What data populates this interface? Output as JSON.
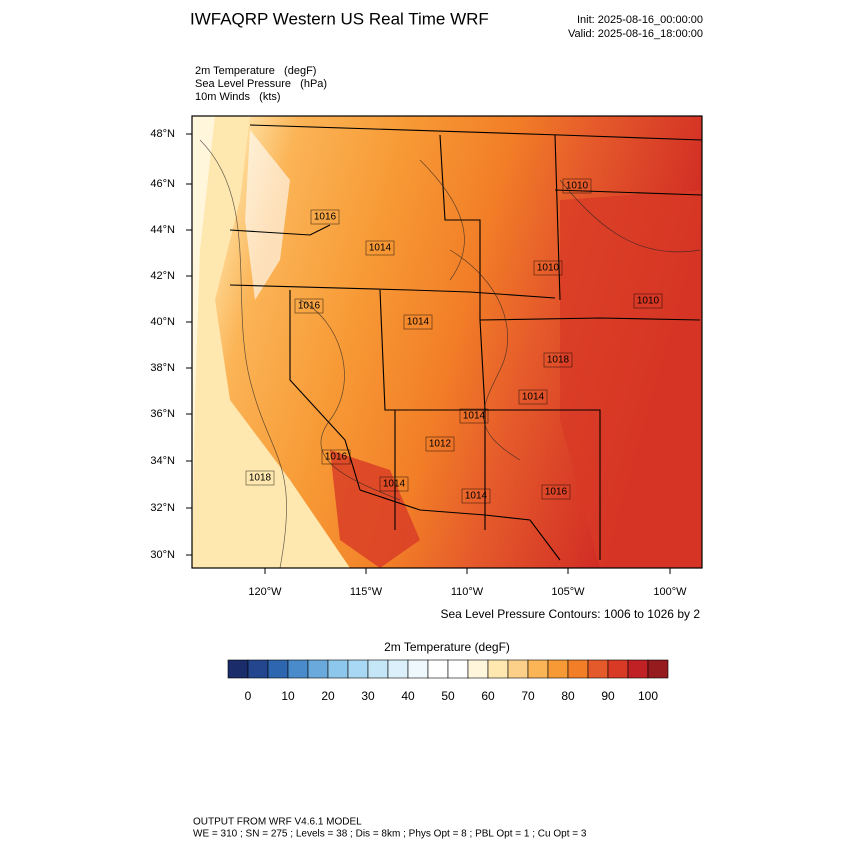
{
  "header": {
    "title": "IWFAQRP Western US Real Time WRF",
    "init": "Init: 2025-08-16_00:00:00",
    "valid": "Valid: 2025-08-16_18:00:00"
  },
  "fields": [
    "2m Temperature   (degF)",
    "Sea Level Pressure   (hPa)",
    "10m Winds   (kts)"
  ],
  "map": {
    "lat_labels": [
      "48°N",
      "46°N",
      "44°N",
      "42°N",
      "40°N",
      "38°N",
      "36°N",
      "34°N",
      "32°N",
      "30°N"
    ],
    "lon_labels": [
      "120°W",
      "115°W",
      "110°W",
      "105°W",
      "100°W"
    ],
    "pressure_labels": [
      "1010",
      "1016",
      "1014",
      "1010",
      "1010",
      "1016",
      "1014",
      "1018",
      "1014",
      "1014",
      "1012",
      "1016",
      "1018",
      "1014",
      "1014",
      "1016"
    ],
    "contour_note": "Sea Level Pressure Contours: 1006 to 1026 by 2"
  },
  "colorbar": {
    "title": "2m Temperature  (degF)",
    "colors": [
      "#1b2c6a",
      "#23468f",
      "#2f66b0",
      "#4a8ccb",
      "#6aa9db",
      "#8ec7ec",
      "#a8d8f3",
      "#c4e6f7",
      "#dbf0fa",
      "#eef8fd",
      "#ffffff",
      "#ffffff",
      "#fff6dc",
      "#ffe8b0",
      "#fdd08a",
      "#fbb456",
      "#f79a36",
      "#f27e27",
      "#e55a2b",
      "#d83a26",
      "#bf2125",
      "#961b1e"
    ],
    "ticks": [
      "0",
      "10",
      "20",
      "30",
      "40",
      "50",
      "60",
      "70",
      "80",
      "90",
      "100"
    ]
  },
  "footer": {
    "line1": "OUTPUT FROM WRF V4.6.1 MODEL",
    "line2": "WE = 310 ; SN = 275 ; Levels = 38 ; Dis = 8km ; Phys Opt = 8 ; PBL Opt = 1 ; Cu Opt = 3"
  }
}
